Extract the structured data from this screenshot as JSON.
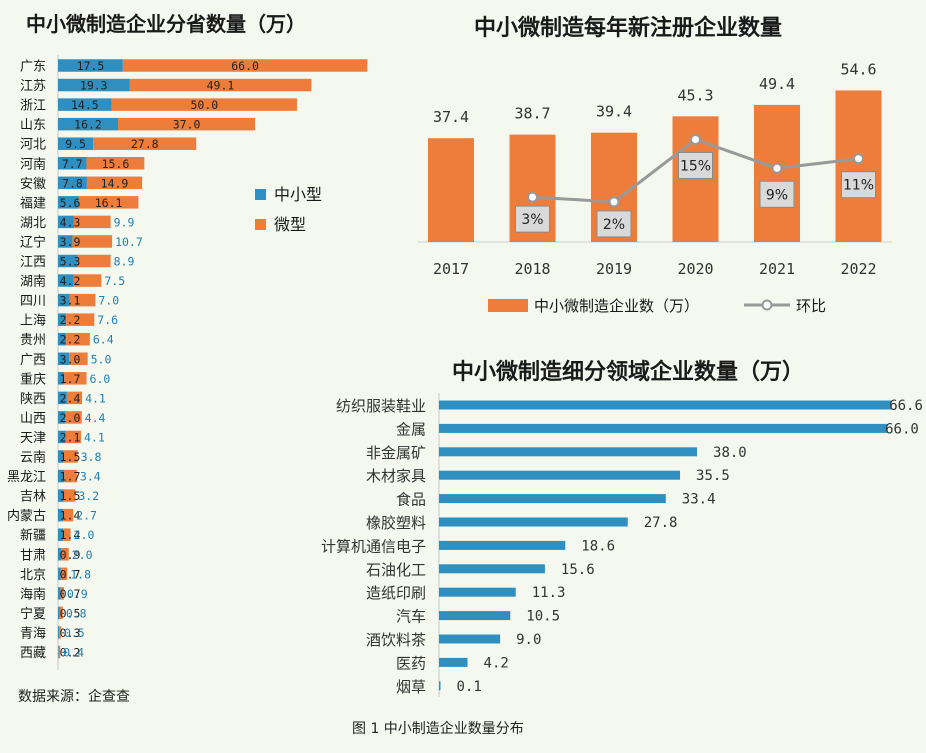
{
  "colors": {
    "small": "#2e8fc0",
    "micro": "#ee7d3b",
    "bg": "#f4f8ee",
    "line": "#999999",
    "text_blue": "#1f7fb5"
  },
  "provinces": {
    "title": "中小微制造企业分省数量（万）",
    "legend": [
      "中小型",
      "微型"
    ],
    "source": "数据来源：企查查",
    "chart_data": {
      "type": "bar",
      "orientation": "horizontal",
      "stacked": true,
      "categories": [
        "广东",
        "江苏",
        "浙江",
        "山东",
        "河北",
        "河南",
        "安徽",
        "福建",
        "湖北",
        "辽宁",
        "江西",
        "湖南",
        "四川",
        "上海",
        "贵州",
        "广西",
        "重庆",
        "陕西",
        "山西",
        "天津",
        "云南",
        "黑龙江",
        "吉林",
        "内蒙古",
        "新疆",
        "甘肃",
        "北京",
        "海南",
        "宁夏",
        "青海",
        "西藏"
      ],
      "series": [
        {
          "name": "中小型",
          "values": [
            17.5,
            19.3,
            14.5,
            16.2,
            9.5,
            7.7,
            7.8,
            5.6,
            4.3,
            3.9,
            5.3,
            4.2,
            3.1,
            2.2,
            2.2,
            3.0,
            1.7,
            2.4,
            2.0,
            2.1,
            1.5,
            1.7,
            1.5,
            1.4,
            1.4,
            0.9,
            0.7,
            0.7,
            0.5,
            0.3,
            0.2
          ],
          "labels": [
            "17.5",
            "19.3",
            "14.5",
            "16.2",
            "9.5",
            "7.7",
            "7.8",
            "5.6",
            "4.3",
            "3.9",
            "5.3",
            "4.2",
            "3.1",
            "2.2",
            "2.2",
            "3.0",
            "1.7",
            "2.4",
            "2.0",
            "2.1",
            "1.5",
            "1.7",
            "1.5",
            "1.4",
            "1.4",
            "0.9",
            "0.7",
            "0.7",
            "0.5",
            "0.3",
            "0.2"
          ]
        },
        {
          "name": "微型",
          "values": [
            66.0,
            49.1,
            50.0,
            37.0,
            27.8,
            15.6,
            14.9,
            16.1,
            9.9,
            10.7,
            8.9,
            7.5,
            7.0,
            7.6,
            6.4,
            5.0,
            6.0,
            4.1,
            4.4,
            4.1,
            3.8,
            3.4,
            3.2,
            2.7,
            2.0,
            2.0,
            1.8,
            0.9,
            0.8,
            0.5,
            0.4
          ],
          "labels": [
            "66.0",
            "49.1",
            "50.0",
            "37.0",
            "27.8",
            "15.6",
            "14.9",
            "16.1",
            "9.9",
            "10.7",
            "8.9",
            "7.5",
            "7.0",
            "7.6",
            "6.4",
            "5.0",
            "6.0",
            "4.1",
            "4.4",
            "4.1",
            "3.8",
            "3.4",
            "3.2",
            "2.7",
            "2.0",
            "2.0",
            "1.8",
            "0.9",
            "0.8",
            "0.5",
            "0.4"
          ]
        }
      ]
    }
  },
  "yearly": {
    "title": "中小微制造每年新注册企业数量",
    "legend": [
      "中小微制造企业数（万）",
      "环比"
    ],
    "chart_data": {
      "type": "bar",
      "categories": [
        "2017",
        "2018",
        "2019",
        "2020",
        "2021",
        "2022"
      ],
      "values": [
        37.4,
        38.7,
        39.4,
        45.3,
        49.4,
        54.6
      ],
      "value_labels": [
        "37.4",
        "38.7",
        "39.4",
        "45.3",
        "49.4",
        "54.6"
      ],
      "line": {
        "name": "环比",
        "x": [
          "2018",
          "2019",
          "2020",
          "2021",
          "2022"
        ],
        "values": [
          3,
          2,
          15,
          9,
          11
        ],
        "labels": [
          "3%",
          "2%",
          "15%",
          "9%",
          "11%"
        ]
      }
    }
  },
  "sectors": {
    "title": "中小微制造细分领域企业数量（万）",
    "chart_data": {
      "type": "bar",
      "orientation": "horizontal",
      "categories": [
        "纺织服装鞋业",
        "金属",
        "非金属矿",
        "木材家具",
        "食品",
        "橡胶塑料",
        "计算机通信电子",
        "石油化工",
        "造纸印刷",
        "汽车",
        "酒饮料茶",
        "医药",
        "烟草"
      ],
      "values": [
        66.6,
        66.0,
        38.0,
        35.5,
        33.4,
        27.8,
        18.6,
        15.6,
        11.3,
        10.5,
        9.0,
        4.2,
        0.1
      ],
      "value_labels": [
        "66.6",
        "66.0",
        "38.0",
        "35.5",
        "33.4",
        "27.8",
        "18.6",
        "15.6",
        "11.3",
        "10.5",
        "9.0",
        "4.2",
        "0.1"
      ]
    }
  },
  "figure_caption": "图 1  中小制造企业数量分布"
}
